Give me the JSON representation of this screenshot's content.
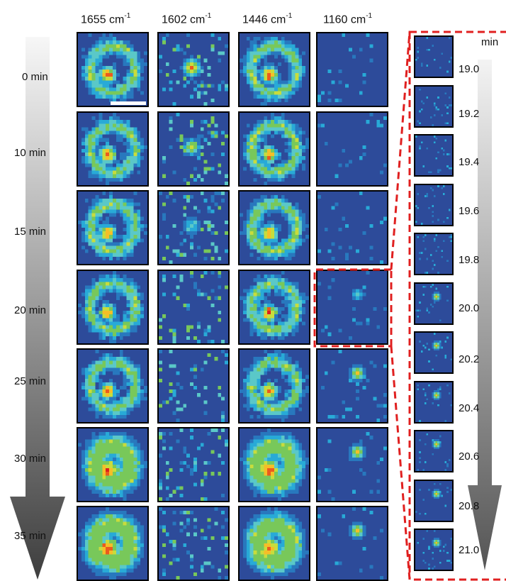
{
  "columns": {
    "c1655": {
      "num": "1655 cm",
      "exp": "-1"
    },
    "c1602": {
      "num": "1602 cm",
      "exp": "-1"
    },
    "c1446": {
      "num": "1446 cm",
      "exp": "-1"
    },
    "c1160": {
      "num": "1160 cm",
      "exp": "-1"
    }
  },
  "time_labels": [
    "0 min",
    "10 min",
    "15 min",
    "20 min",
    "25 min",
    "30 min",
    "35 min"
  ],
  "inset": {
    "unit": "min",
    "labels": [
      "19.0",
      "19.2",
      "19.4",
      "19.6",
      "19.8",
      "20.0",
      "20.2",
      "20.4",
      "20.6",
      "20.8",
      "21.0"
    ]
  },
  "colors": {
    "background_map": "#2d4b9a",
    "highlight_dash": "#e02020",
    "arrow_light": "#f2f2f2",
    "arrow_dark": "#4a4a4a"
  }
}
